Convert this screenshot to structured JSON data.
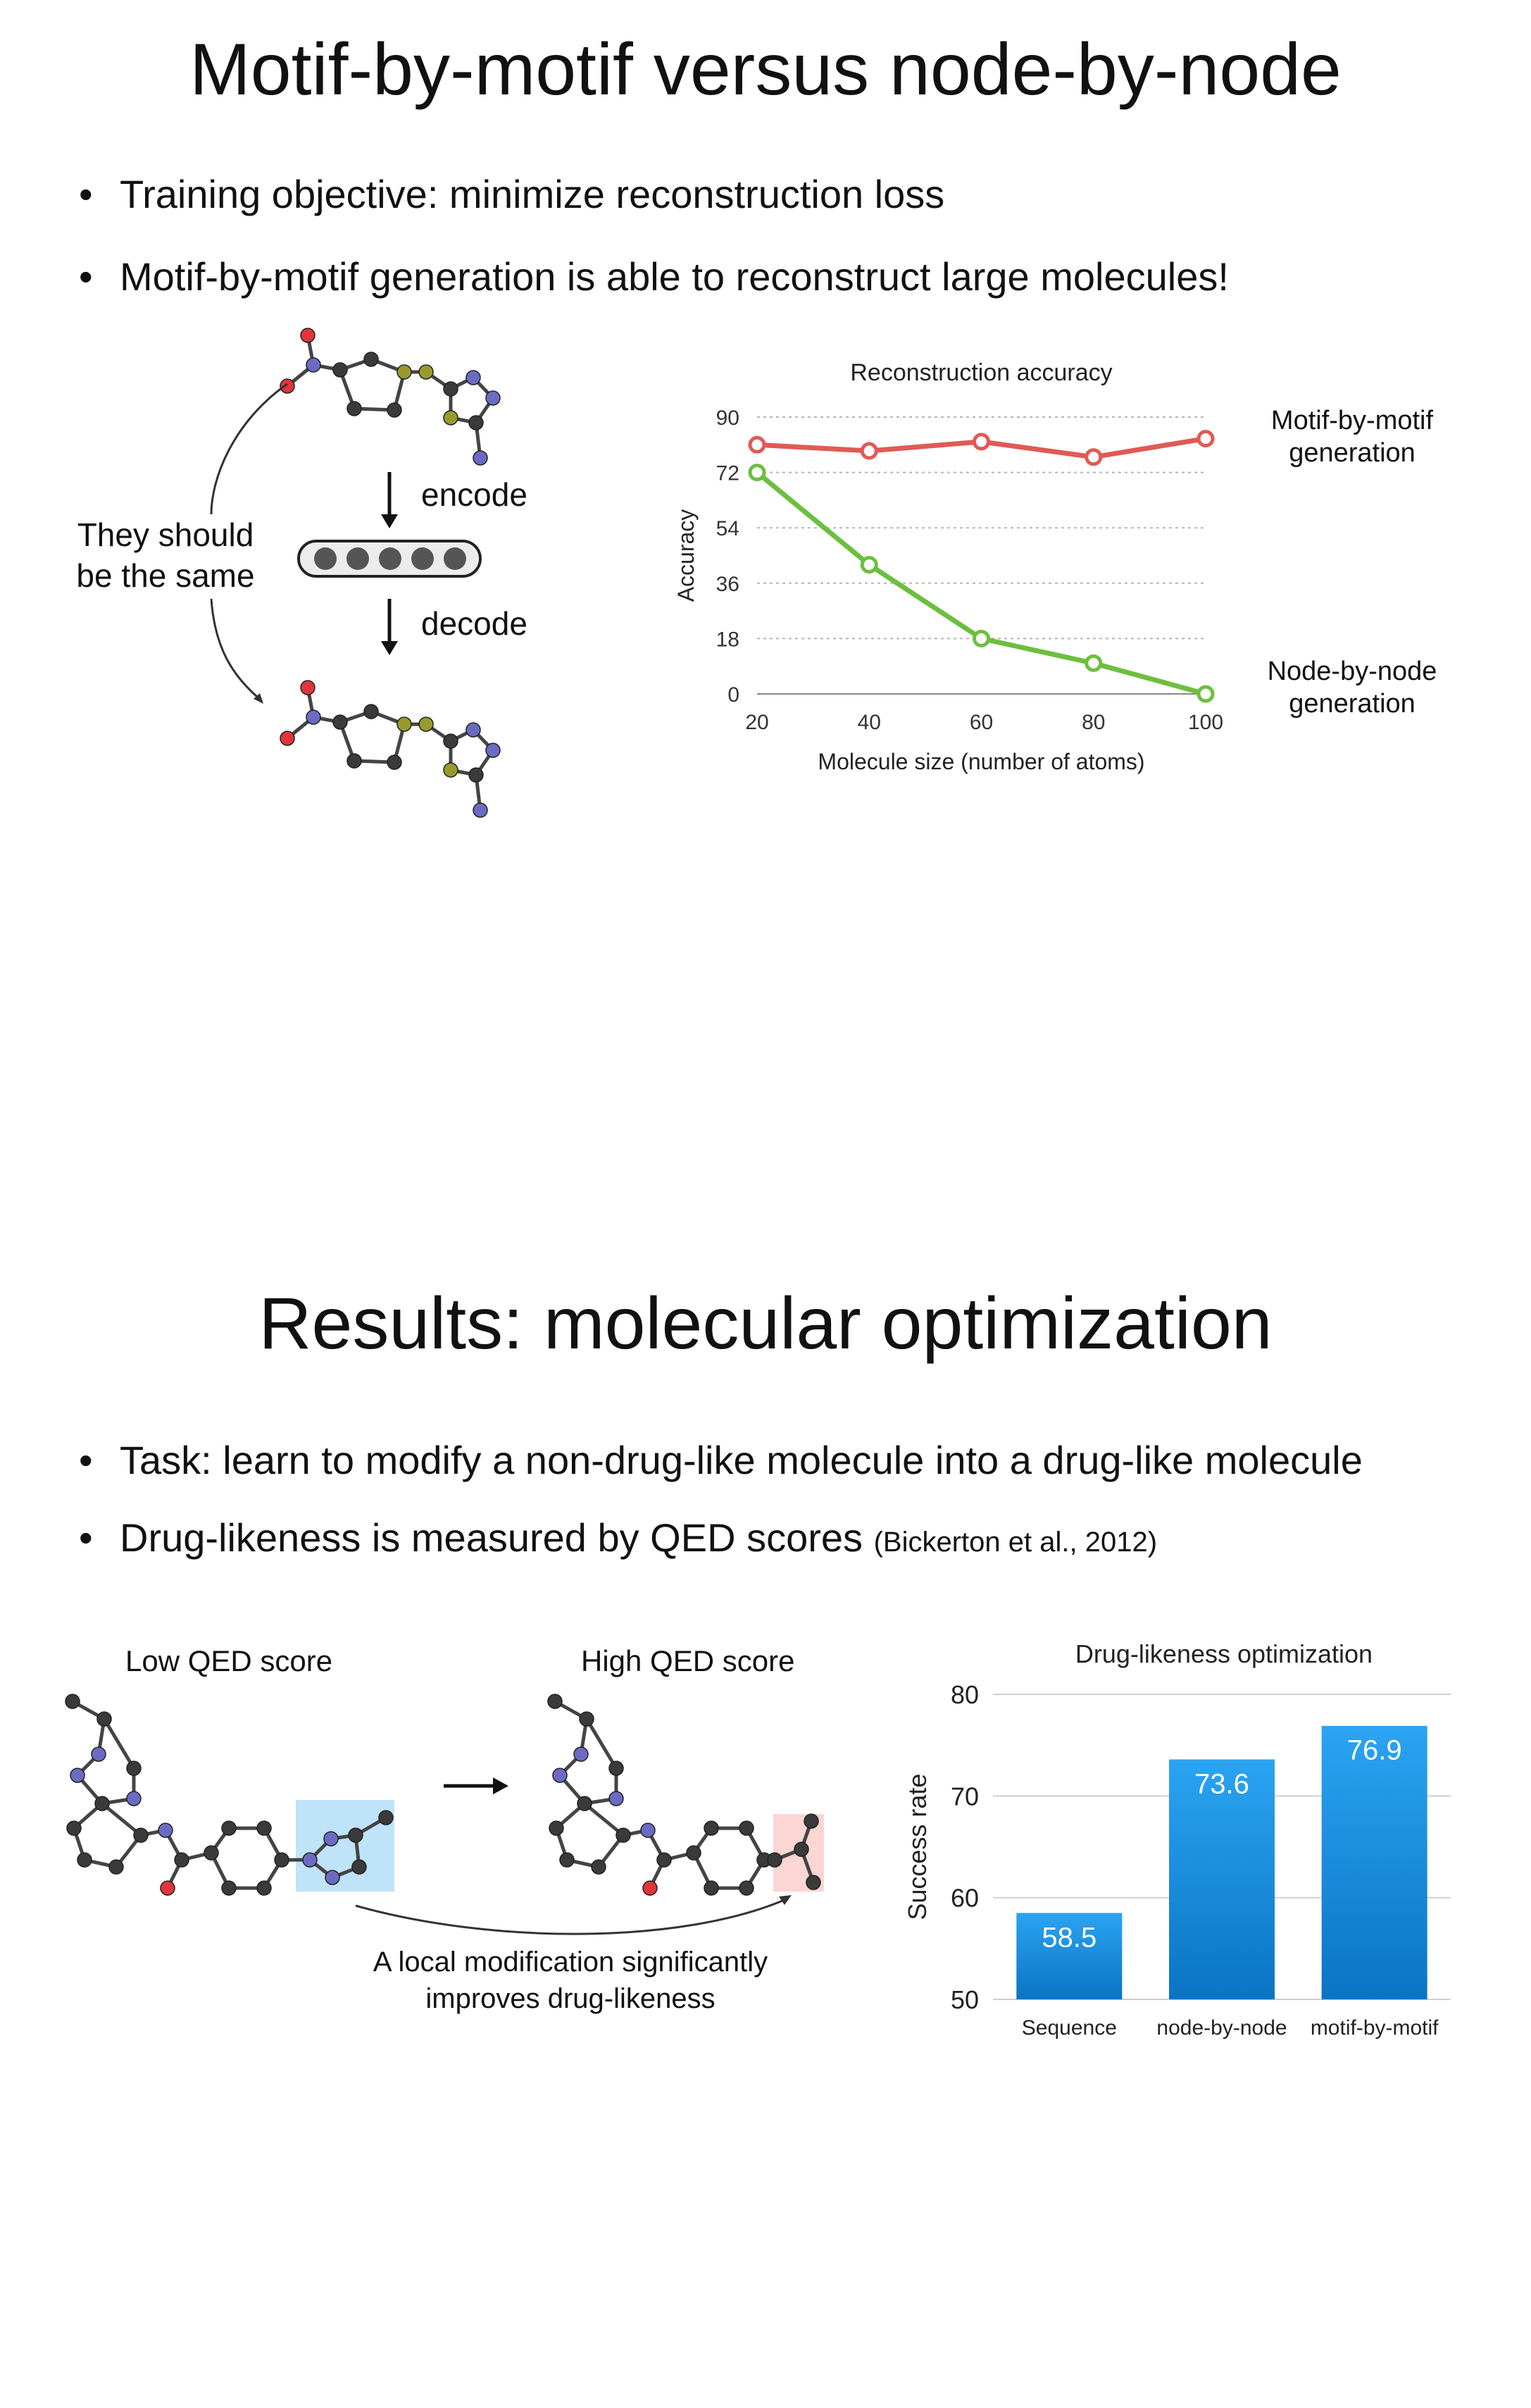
{
  "slide1": {
    "title": "Motif-by-motif versus node-by-node",
    "bullets": [
      "Training objective: minimize reconstruction loss",
      "Motif-by-motif generation is able to reconstruct large molecules!"
    ],
    "diagram": {
      "encode_label": "encode",
      "decode_label": "decode",
      "same_label_line1": "They should",
      "same_label_line2": "be the same",
      "latent_dots": 5
    },
    "series_labels": {
      "motif_line1": "Motif-by-motif",
      "motif_line2": "generation",
      "node_line1": "Node-by-node",
      "node_line2": "generation"
    }
  },
  "slide2": {
    "title": "Results: molecular optimization",
    "bullets": [
      "Task: learn to modify a non-drug-like molecule into a drug-like molecule",
      "Drug-likeness is measured by QED scores"
    ],
    "citation": "(Bickerton et al., 2012)",
    "low_label": "Low QED score",
    "high_label": "High QED score",
    "caption_line1": "A local modification significantly",
    "caption_line2": "improves drug-likeness"
  },
  "colors": {
    "motif_red": "#e05a55",
    "node_green": "#6cbf3f",
    "bar_blue": "#1a8ee0",
    "atom_carbon": "#3a3a3a",
    "atom_nitrogen": "#6b6bc4",
    "atom_oxygen": "#e0353a",
    "atom_sulfur": "#9a9a2c",
    "highlight_blue": "#bfe3f8",
    "highlight_red": "#fbd6d3"
  },
  "chart_data": [
    {
      "type": "line",
      "title": "Reconstruction accuracy",
      "xlabel": "Molecule size (number of atoms)",
      "ylabel": "Accuracy",
      "x": [
        20,
        40,
        60,
        80,
        100
      ],
      "xticks": [
        "20",
        "40",
        "60",
        "80",
        "100"
      ],
      "yticks": [
        "0",
        "18",
        "36",
        "54",
        "72",
        "90"
      ],
      "ylim": [
        0,
        90
      ],
      "grid": true,
      "series": [
        {
          "name": "Motif-by-motif generation",
          "values": [
            81,
            79,
            82,
            77,
            83
          ]
        },
        {
          "name": "Node-by-node generation",
          "values": [
            72,
            42,
            18,
            10,
            0
          ]
        }
      ]
    },
    {
      "type": "bar",
      "title": "Drug-likeness optimization",
      "xlabel": "",
      "ylabel": "Success rate",
      "categories": [
        "Sequence",
        "node-by-node",
        "motif-by-motif"
      ],
      "values": [
        58.5,
        73.6,
        76.9
      ],
      "value_labels": [
        "58.5",
        "73.6",
        "76.9"
      ],
      "yticks": [
        "50",
        "60",
        "70",
        "80"
      ],
      "ylim": [
        50,
        80
      ],
      "grid": true
    }
  ]
}
